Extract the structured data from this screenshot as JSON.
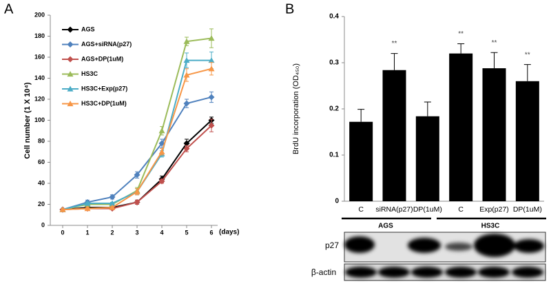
{
  "chart_data": [
    {
      "type": "line",
      "panel_label": "A",
      "ylabel": "Cell number (1 X 10⁴)",
      "xlabel": "(days)",
      "x": [
        0,
        1,
        2,
        3,
        4,
        5,
        6
      ],
      "xlim": [
        -0.5,
        6.25
      ],
      "xticks": [
        0,
        1,
        2,
        3,
        4,
        5,
        6
      ],
      "ylim": [
        0,
        200
      ],
      "yticks": [
        0,
        20,
        40,
        60,
        80,
        100,
        120,
        140,
        160,
        180,
        200
      ],
      "series": [
        {
          "name": "AGS",
          "color": "#000000",
          "marker": "diamond",
          "values": [
            15,
            17,
            17,
            22,
            44,
            78,
            100
          ],
          "errors": [
            1,
            1,
            1,
            2,
            3,
            4,
            3
          ]
        },
        {
          "name": "AGS+siRNA(p27)",
          "color": "#4f81bd",
          "marker": "diamond",
          "values": [
            15,
            22,
            27,
            48,
            78,
            116,
            122
          ],
          "errors": [
            1,
            2,
            2,
            3,
            4,
            4,
            5
          ]
        },
        {
          "name": "AGS+DP(1uM)",
          "color": "#c0504d",
          "marker": "diamond",
          "values": [
            15,
            16,
            16,
            22,
            42,
            73,
            95
          ],
          "errors": [
            1,
            1,
            1,
            2,
            2,
            3,
            6
          ]
        },
        {
          "name": "HS3C",
          "color": "#9bbb59",
          "marker": "triangle",
          "values": [
            15,
            20,
            20,
            33,
            90,
            175,
            178
          ],
          "errors": [
            1,
            1,
            2,
            3,
            4,
            4,
            9
          ]
        },
        {
          "name": "HS3C+Exp(p27)",
          "color": "#4bacc6",
          "marker": "triangle",
          "values": [
            15,
            21,
            21,
            32,
            68,
            157,
            157
          ],
          "errors": [
            1,
            1,
            1,
            3,
            3,
            7,
            8
          ]
        },
        {
          "name": "HS3C+DP(1uM)",
          "color": "#f79646",
          "marker": "triangle",
          "values": [
            15,
            16,
            17,
            32,
            70,
            143,
            149
          ],
          "errors": [
            1,
            1,
            1,
            3,
            3,
            6,
            6
          ]
        }
      ]
    },
    {
      "type": "bar",
      "panel_label": "B",
      "ylabel": "BrdU incorporation (OD₄₅₀)",
      "color": "#000000",
      "categories": [
        "C",
        "siRNA(p27)",
        "DP(1uM)",
        "C",
        "Exp(p27)",
        "DP(1uM)"
      ],
      "values": [
        0.172,
        0.284,
        0.184,
        0.32,
        0.288,
        0.26
      ],
      "errors": [
        0.027,
        0.036,
        0.031,
        0.021,
        0.034,
        0.036
      ],
      "significance": [
        null,
        "**",
        null,
        "**",
        "**",
        "**"
      ],
      "ylim": [
        0,
        0.4
      ],
      "yticks": [
        0,
        0.1,
        0.2,
        0.3,
        0.4
      ],
      "group_labels": [
        "AGS",
        "HS3C"
      ],
      "blot_labels": [
        "p27",
        "β-actin"
      ]
    }
  ]
}
